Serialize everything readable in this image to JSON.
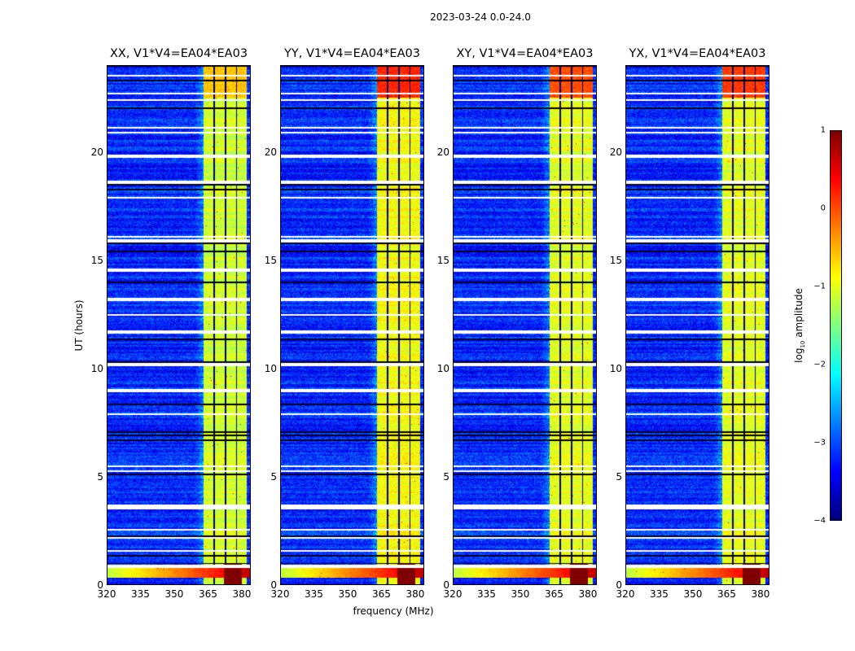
{
  "title": "2023-03-24 0.0-24.0",
  "chart_data": {
    "type": "heatmap",
    "title": "2023-03-24 0.0-24.0",
    "xlabel": "frequency (MHz)",
    "ylabel": "UT (hours)",
    "xlim": [
      320,
      384
    ],
    "ylim": [
      0,
      24
    ],
    "xticks": [
      "320",
      "335",
      "350",
      "365",
      "380"
    ],
    "xtick_values": [
      320,
      335,
      350,
      365,
      380
    ],
    "yticks": [
      "0",
      "5",
      "10",
      "15",
      "20"
    ],
    "ytick_values": [
      0,
      5,
      10,
      15,
      20
    ],
    "panels": [
      {
        "title": "XX, V1*V4=EA04*EA03",
        "band_level": -1.1,
        "top_level": -0.6
      },
      {
        "title": "YY, V1*V4=EA04*EA03",
        "band_level": -0.9,
        "top_level": 0.2
      },
      {
        "title": "XY, V1*V4=EA04*EA03",
        "band_level": -1.0,
        "top_level": 0.0
      },
      {
        "title": "YX, V1*V4=EA04*EA03",
        "band_level": -1.0,
        "top_level": 0.1
      }
    ],
    "bright_band_mhz": [
      363,
      382
    ],
    "band_gaps_mhz": [
      367.5,
      372.5,
      377.5
    ],
    "background_level": -3.2,
    "low_time_band_hours": [
      0.35,
      0.95
    ],
    "saturated_block": {
      "freq_mhz": [
        372,
        380
      ],
      "hours": [
        0,
        1.0
      ],
      "level": 1.0
    },
    "flagged_hours": [
      0.9,
      1.6,
      2.2,
      2.6,
      3.6,
      3.7,
      5.3,
      5.5,
      7.9,
      9.0,
      10.2,
      11.7,
      12.5,
      13.2,
      14.5,
      14.6,
      15.9,
      16.1,
      17.9,
      18.6,
      19.8,
      20.9,
      21.1,
      22.4,
      22.7,
      23.5
    ],
    "colorbar": {
      "label": "log10 amplitude",
      "label_base": "log",
      "label_sub": "10",
      "label_rest": " amplitude",
      "range": [
        -4,
        1
      ],
      "ticks": [
        "1",
        "0",
        "−1",
        "−2",
        "−3",
        "−4"
      ],
      "tick_values": [
        1,
        0,
        -1,
        -2,
        -3,
        -4
      ],
      "colormap": "jet"
    }
  }
}
